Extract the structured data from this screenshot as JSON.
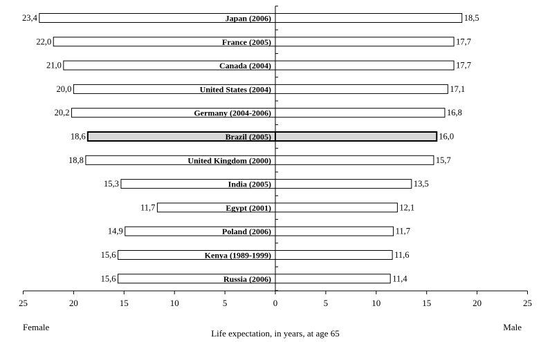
{
  "chart_data": {
    "type": "bar",
    "orientation": "horizontal",
    "layout": "population-pyramid",
    "categories": [
      "Japan (2006)",
      "France (2005)",
      "Canada (2004)",
      "United States (2004)",
      "Germany (2004-2006)",
      "Brazil (2005)",
      "United Kingdom (2000)",
      "India (2005)",
      "Egypt (2001)",
      "Poland (2006)",
      "Kenya (1989-1999)",
      "Russia (2006)"
    ],
    "series": [
      {
        "name": "Female",
        "side": "left",
        "values": [
          23.4,
          22.0,
          21.0,
          20.0,
          20.2,
          18.6,
          18.8,
          15.3,
          11.7,
          14.9,
          15.6,
          15.6
        ],
        "labels": [
          "23,4",
          "22,0",
          "21,0",
          "20,0",
          "20,2",
          "18,6",
          "18,8",
          "15,3",
          "11,7",
          "14,9",
          "15,6",
          "15,6"
        ]
      },
      {
        "name": "Male",
        "side": "right",
        "values": [
          18.5,
          17.7,
          17.7,
          17.1,
          16.8,
          16.0,
          15.7,
          13.5,
          12.1,
          11.7,
          11.6,
          11.4
        ],
        "labels": [
          "18,5",
          "17,7",
          "17,7",
          "17,1",
          "16,8",
          "16,0",
          "15,7",
          "13,5",
          "12,1",
          "11,7",
          "11,6",
          "11,4"
        ]
      }
    ],
    "highlight_category": "Brazil (2005)",
    "xlabel": "Life expectation, in years, at age 65",
    "xlim": [
      -25,
      25
    ],
    "ticks": [
      -25,
      -20,
      -15,
      -10,
      -5,
      0,
      5,
      10,
      15,
      20,
      25
    ],
    "tick_labels": [
      "25",
      "20",
      "15",
      "10",
      "5",
      "0",
      "5",
      "10",
      "15",
      "20",
      "25"
    ],
    "grid": false,
    "colors": {
      "bar_fill": "#ffffff",
      "bar_stroke": "#000000",
      "highlight_fill": "#d8d8d8",
      "axis": "#000000"
    }
  }
}
